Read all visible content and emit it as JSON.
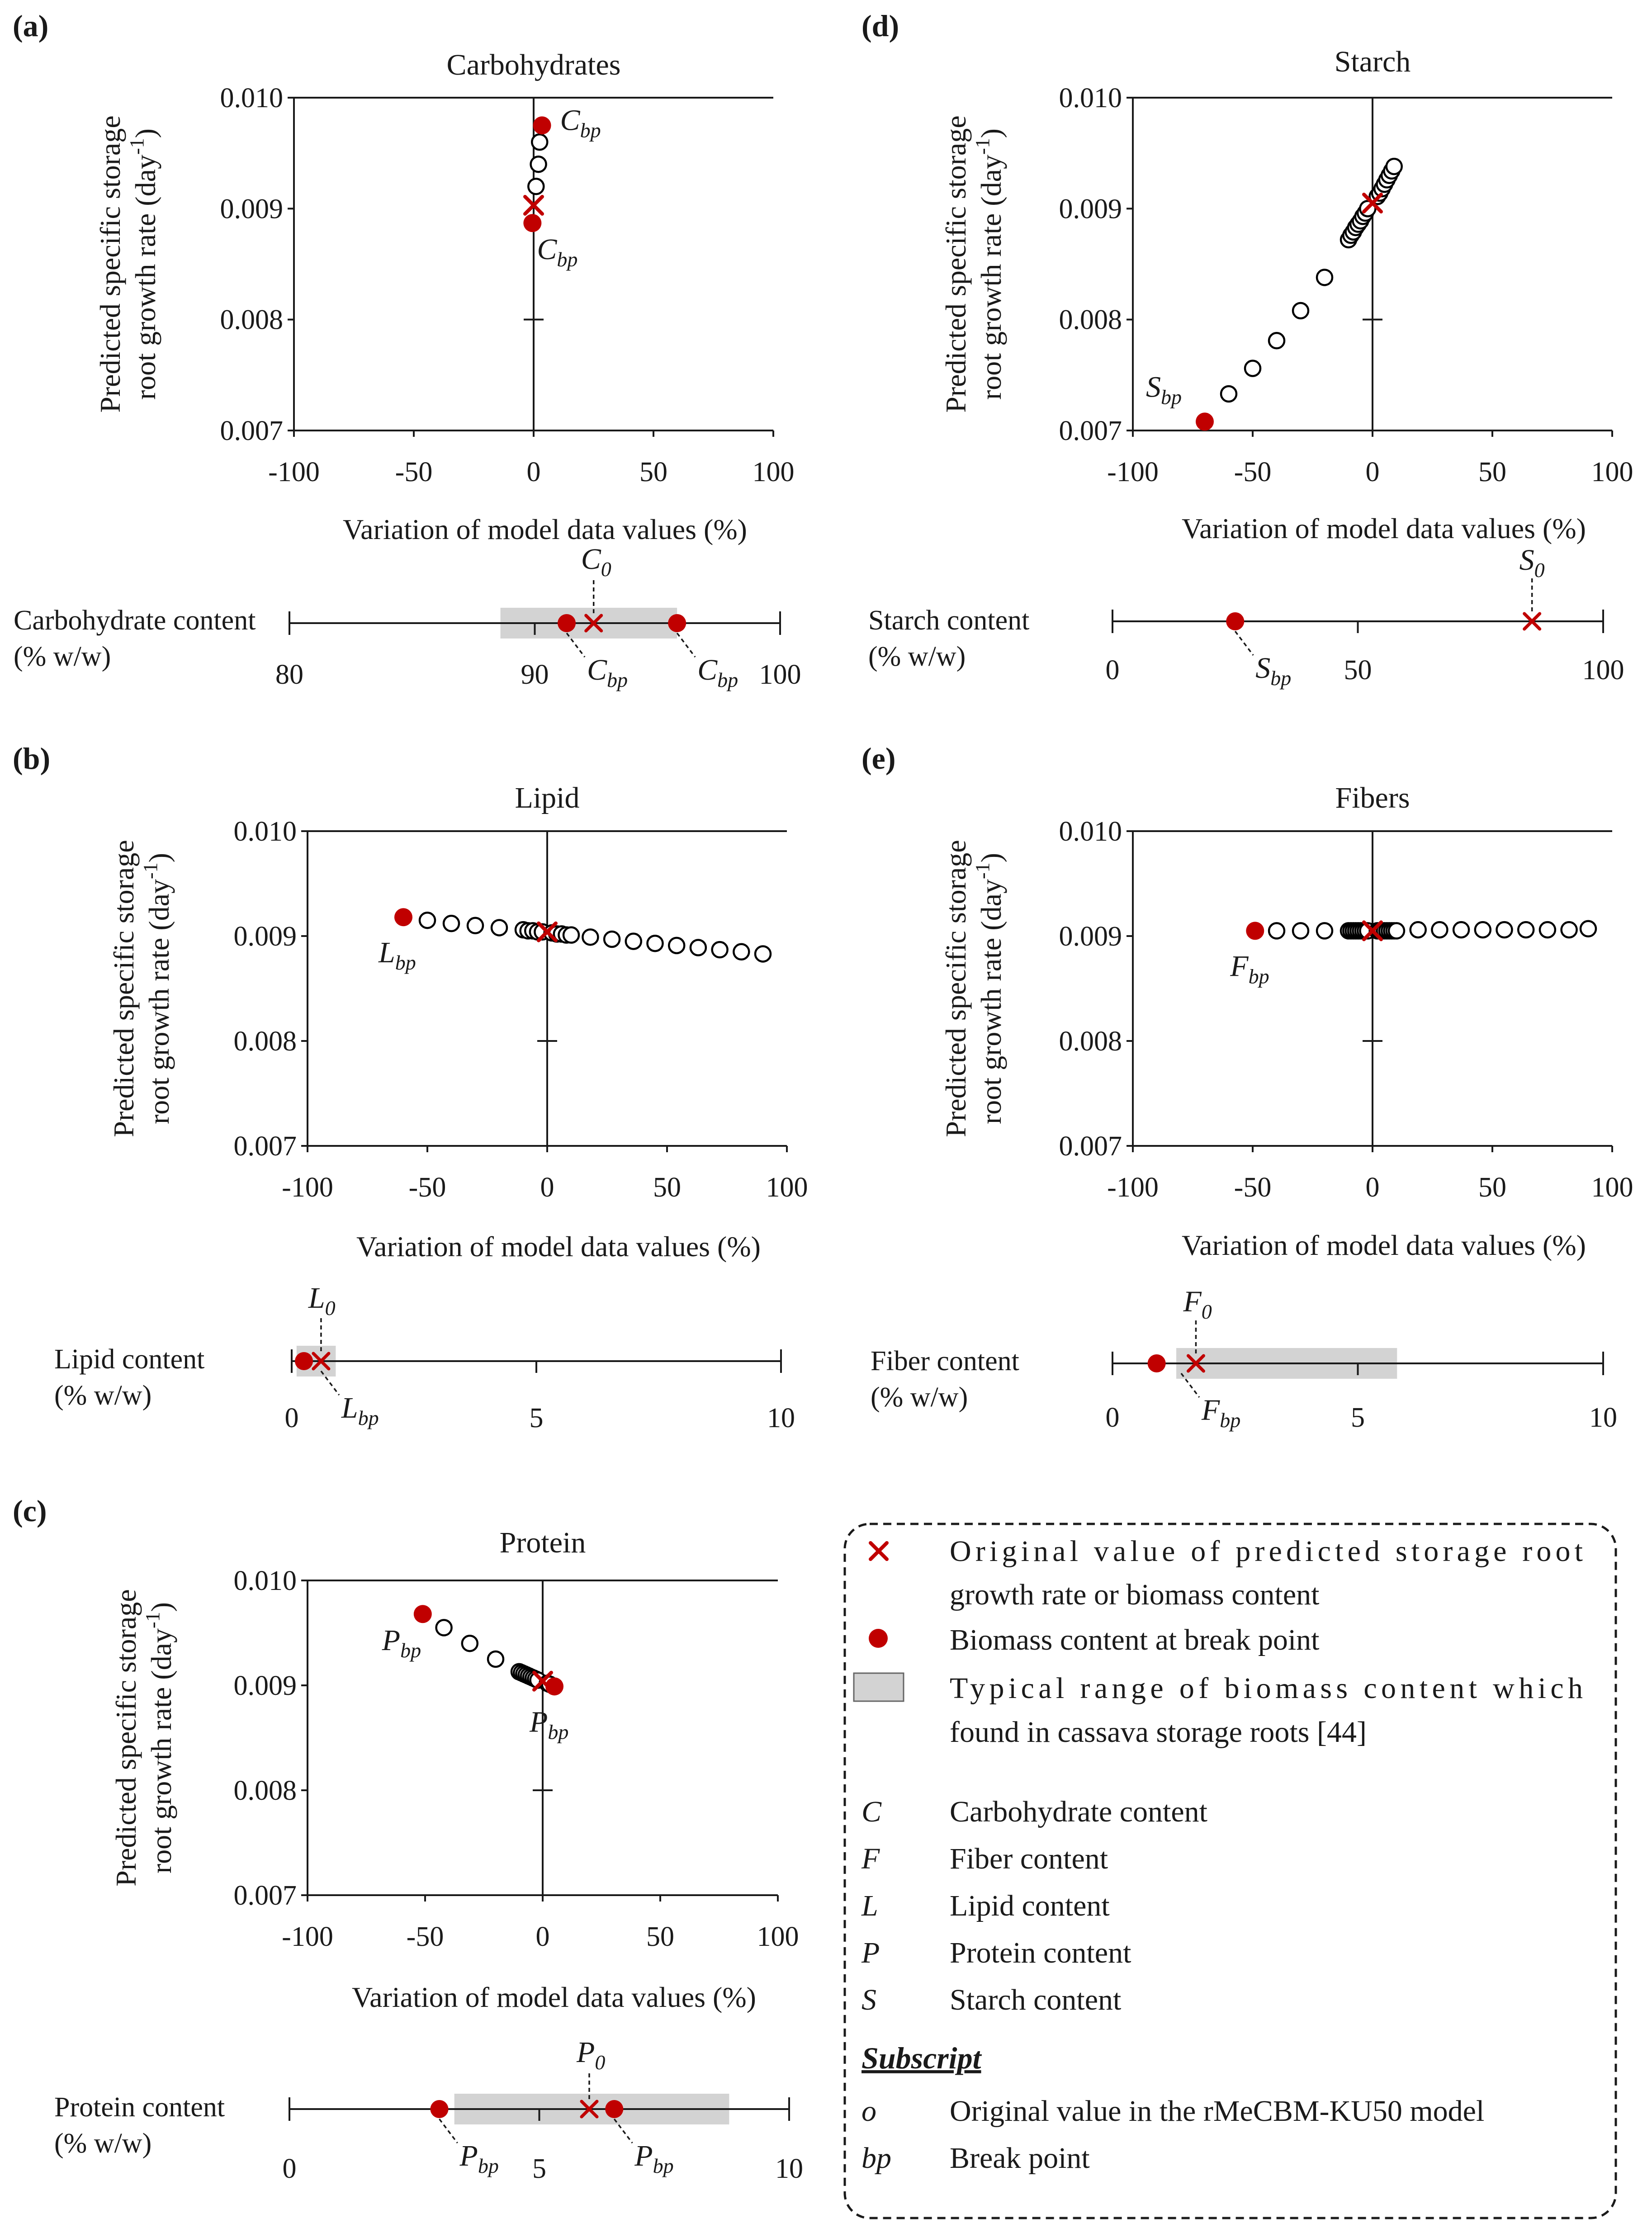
{
  "figure": {
    "shared_ylabel_line1": "Predicted specific storage",
    "shared_ylabel_line2": "root growth rate (day",
    "shared_ylabel_sup": "-1",
    "shared_ylabel_end": ")",
    "shared_xlabel": "Variation of model data values (%)"
  },
  "colors": {
    "red": "#c00000",
    "grey": "#d3d3d3",
    "black": "#000000"
  },
  "chart_data": [
    {
      "id": "a",
      "letter": "(a)",
      "type": "scatter",
      "title": "Carbohydrates",
      "xlabel": "Variation of model data values (%)",
      "ylabel": "Predicted specific storage root growth rate (day-1)",
      "xlim": [
        -100,
        100
      ],
      "ylim": [
        0.007,
        0.01
      ],
      "xticks": [
        "-100",
        "-50",
        "0",
        "50",
        "100"
      ],
      "yticks": [
        "0.010",
        "0.009",
        "0.008",
        "0.007"
      ],
      "open_points": [
        [
          2.5,
          0.0096
        ],
        [
          2.0,
          0.0094
        ],
        [
          1.0,
          0.0092
        ]
      ],
      "red_dots": [
        [
          3.5,
          0.00975
        ],
        [
          -0.5,
          0.00887
        ]
      ],
      "original_x": [
        0,
        0.00903
      ],
      "annotations": [
        {
          "sym": "C",
          "sub": "bp",
          "at": [
            3.5,
            0.00975
          ],
          "side": "right-up"
        },
        {
          "sym": "C",
          "sub": "bp",
          "at": [
            -0.5,
            0.00887
          ],
          "side": "right-down"
        }
      ],
      "content": {
        "label1": "Carbohydrate content",
        "label2": "(% w/w)",
        "xlim": [
          80,
          100
        ],
        "ticks": [
          "80",
          "90",
          "100"
        ],
        "tick_values": [
          80,
          90,
          100
        ],
        "range": [
          88.6,
          95.8
        ],
        "original": 92.4,
        "breakpoints": [
          91.3,
          95.8
        ],
        "orig_label": {
          "sym": "C",
          "sub": "0"
        },
        "bp_labels": [
          {
            "sym": "C",
            "sub": "bp",
            "at": 91.3
          },
          {
            "sym": "C",
            "sub": "bp",
            "at": 95.8
          }
        ]
      }
    },
    {
      "id": "b",
      "letter": "(b)",
      "type": "scatter",
      "title": "Lipid",
      "xlabel": "Variation of model data values (%)",
      "ylabel": "Predicted specific storage root growth rate (day-1)",
      "xlim": [
        -100,
        100
      ],
      "ylim": [
        0.007,
        0.01
      ],
      "xticks": [
        "-100",
        "-50",
        "0",
        "50",
        "100"
      ],
      "yticks": [
        "0.010",
        "0.009",
        "0.008",
        "0.007"
      ],
      "open_points": [
        [
          -50,
          0.00915
        ],
        [
          -40,
          0.00912
        ],
        [
          -30,
          0.0091
        ],
        [
          -20,
          0.00908
        ],
        [
          -10,
          0.00906
        ],
        [
          -8,
          0.00905
        ],
        [
          -6,
          0.00905
        ],
        [
          -4,
          0.00904
        ],
        [
          -2,
          0.00904
        ],
        [
          2,
          0.00903
        ],
        [
          4,
          0.00902
        ],
        [
          6,
          0.00902
        ],
        [
          8,
          0.00901
        ],
        [
          10,
          0.00901
        ],
        [
          18,
          0.00899
        ],
        [
          27,
          0.00897
        ],
        [
          36,
          0.00895
        ],
        [
          45,
          0.00893
        ],
        [
          54,
          0.00891
        ],
        [
          63,
          0.00889
        ],
        [
          72,
          0.00887
        ],
        [
          81,
          0.00885
        ],
        [
          90,
          0.00883
        ]
      ],
      "red_dots": [
        [
          -60,
          0.00918
        ]
      ],
      "original_x": [
        0,
        0.00904
      ],
      "annotations": [
        {
          "sym": "L",
          "sub": "bp",
          "at": [
            -60,
            0.00918
          ],
          "side": "below"
        }
      ],
      "content": {
        "label1": "Lipid content",
        "label2": "(% w/w)",
        "xlim": [
          0,
          10
        ],
        "ticks": [
          "0",
          "5",
          "10"
        ],
        "tick_values": [
          0,
          5,
          10
        ],
        "range": [
          0.1,
          0.9
        ],
        "original": 0.6,
        "breakpoints": [
          0.25
        ],
        "orig_label": {
          "sym": "L",
          "sub": "0"
        },
        "bp_labels": [
          {
            "sym": "L",
            "sub": "bp",
            "at": 0.6
          }
        ]
      }
    },
    {
      "id": "c",
      "letter": "(c)",
      "type": "scatter",
      "title": "Protein",
      "xlabel": "Variation of model data values (%)",
      "ylabel": "Predicted specific storage root growth rate (day-1)",
      "xlim": [
        -100,
        100
      ],
      "ylim": [
        0.007,
        0.01
      ],
      "xticks": [
        "-100",
        "-50",
        "0",
        "50",
        "100"
      ],
      "yticks": [
        "0.010",
        "0.009",
        "0.008",
        "0.007"
      ],
      "open_points": [
        [
          -42,
          0.00955
        ],
        [
          -31,
          0.0094
        ],
        [
          -20,
          0.00925
        ],
        [
          -10,
          0.00913
        ],
        [
          -9,
          0.00912
        ],
        [
          -8,
          0.00911
        ],
        [
          -7,
          0.0091
        ],
        [
          -6,
          0.00909
        ],
        [
          -5,
          0.00908
        ],
        [
          -4,
          0.00907
        ],
        [
          -3,
          0.00906
        ],
        [
          -2,
          0.00905
        ],
        [
          2,
          0.00902
        ],
        [
          3,
          0.00901
        ]
      ],
      "red_dots": [
        [
          -51,
          0.00968
        ],
        [
          5,
          0.00899
        ]
      ],
      "original_x": [
        0,
        0.00904
      ],
      "annotations": [
        {
          "sym": "P",
          "sub": "bp",
          "at": [
            -51,
            0.00968
          ],
          "side": "below-left"
        },
        {
          "sym": "P",
          "sub": "bp",
          "at": [
            5,
            0.00899
          ],
          "side": "below"
        }
      ],
      "content": {
        "label1": "Protein content",
        "label2": "(% w/w)",
        "xlim": [
          0,
          10
        ],
        "ticks": [
          "0",
          "5",
          "10"
        ],
        "tick_values": [
          0,
          5,
          10
        ],
        "range": [
          3.3,
          8.8
        ],
        "original": 6.0,
        "breakpoints": [
          3.0,
          6.5
        ],
        "orig_label": {
          "sym": "P",
          "sub": "0"
        },
        "bp_labels": [
          {
            "sym": "P",
            "sub": "bp",
            "at": 3.0
          },
          {
            "sym": "P",
            "sub": "bp",
            "at": 6.5
          }
        ]
      }
    },
    {
      "id": "d",
      "letter": "(d)",
      "type": "scatter",
      "title": "Starch",
      "xlabel": "Variation of model data values (%)",
      "ylabel": "Predicted specific storage root growth rate (day-1)",
      "xlim": [
        -100,
        100
      ],
      "ylim": [
        0.007,
        0.01
      ],
      "xticks": [
        "-100",
        "-50",
        "0",
        "50",
        "100"
      ],
      "yticks": [
        "0.010",
        "0.009",
        "0.008",
        "0.007"
      ],
      "open_points": [
        [
          -60,
          0.00733
        ],
        [
          -50,
          0.00756
        ],
        [
          -40,
          0.00781
        ],
        [
          -30,
          0.00808
        ],
        [
          -20,
          0.00838
        ],
        [
          -10,
          0.00872
        ],
        [
          -9,
          0.00876
        ],
        [
          -8,
          0.00879
        ],
        [
          -7,
          0.00883
        ],
        [
          -6,
          0.00886
        ],
        [
          -5,
          0.00889
        ],
        [
          -4,
          0.00893
        ],
        [
          -3,
          0.00896
        ],
        [
          -2,
          0.009
        ],
        [
          2,
          0.00911
        ],
        [
          3,
          0.00914
        ],
        [
          4,
          0.00918
        ],
        [
          5,
          0.00922
        ],
        [
          6,
          0.00926
        ],
        [
          7,
          0.0093
        ],
        [
          8,
          0.00934
        ],
        [
          9,
          0.00938
        ]
      ],
      "red_dots": [
        [
          -70,
          0.00708
        ]
      ],
      "original_x": [
        0,
        0.00905
      ],
      "annotations": [
        {
          "sym": "S",
          "sub": "bp",
          "at": [
            -70,
            0.00708
          ],
          "side": "left-up"
        }
      ],
      "content": {
        "label1": "Starch content",
        "label2": "(% w/w)",
        "xlim": [
          0,
          100
        ],
        "ticks": [
          "0",
          "50",
          "100"
        ],
        "tick_values": [
          0,
          50,
          100
        ],
        "range": null,
        "original": 85.5,
        "breakpoints": [
          25
        ],
        "orig_label": {
          "sym": "S",
          "sub": "0"
        },
        "bp_labels": [
          {
            "sym": "S",
            "sub": "bp",
            "at": 25
          }
        ]
      }
    },
    {
      "id": "e",
      "letter": "(e)",
      "type": "scatter",
      "title": "Fibers",
      "xlabel": "Variation of model data values (%)",
      "ylabel": "Predicted specific storage root growth rate (day-1)",
      "xlim": [
        -100,
        100
      ],
      "ylim": [
        0.007,
        0.01
      ],
      "xticks": [
        "-100",
        "-50",
        "0",
        "50",
        "100"
      ],
      "yticks": [
        "0.010",
        "0.009",
        "0.008",
        "0.007"
      ],
      "open_points": [
        [
          -40,
          0.00905
        ],
        [
          -30,
          0.00905
        ],
        [
          -20,
          0.00905
        ],
        [
          -10,
          0.00905
        ],
        [
          -9,
          0.00905
        ],
        [
          -8,
          0.00905
        ],
        [
          -7,
          0.00905
        ],
        [
          -6,
          0.00905
        ],
        [
          -5,
          0.00905
        ],
        [
          -4,
          0.00905
        ],
        [
          -3,
          0.00905
        ],
        [
          -2,
          0.00905
        ],
        [
          2,
          0.00905
        ],
        [
          3,
          0.00905
        ],
        [
          4,
          0.00905
        ],
        [
          5,
          0.00905
        ],
        [
          6,
          0.00905
        ],
        [
          7,
          0.00905
        ],
        [
          8,
          0.00905
        ],
        [
          9,
          0.00905
        ],
        [
          10,
          0.00905
        ],
        [
          19,
          0.00906
        ],
        [
          28,
          0.00906
        ],
        [
          37,
          0.00906
        ],
        [
          46,
          0.00906
        ],
        [
          55,
          0.00906
        ],
        [
          64,
          0.00906
        ],
        [
          73,
          0.00906
        ],
        [
          82,
          0.00906
        ],
        [
          90,
          0.00907
        ]
      ],
      "red_dots": [
        [
          -49,
          0.00905
        ]
      ],
      "original_x": [
        0,
        0.00905
      ],
      "annotations": [
        {
          "sym": "F",
          "sub": "bp",
          "at": [
            -49,
            0.00905
          ],
          "side": "below"
        }
      ],
      "content": {
        "label1": "Fiber content",
        "label2": "(% w/w)",
        "xlim": [
          0,
          10
        ],
        "ticks": [
          "0",
          "5",
          "10"
        ],
        "tick_values": [
          0,
          5,
          10
        ],
        "range": [
          1.3,
          5.8
        ],
        "original": 1.7,
        "breakpoints": [
          0.9
        ],
        "orig_label": {
          "sym": "F",
          "sub": "0"
        },
        "bp_labels": [
          {
            "sym": "F",
            "sub": "bp",
            "at": 1.4
          }
        ]
      }
    }
  ],
  "legend": {
    "entries": [
      {
        "marker": "x",
        "text1": "Original value of predicted storage root",
        "text2": "growth rate or biomass content"
      },
      {
        "marker": "dot",
        "text1": "Biomass content at break point",
        "text2": ""
      },
      {
        "marker": "grey",
        "text1": "Typical range of biomass content which",
        "text2": "found in cassava storage roots [44]"
      }
    ],
    "symbols": [
      {
        "sym": "C",
        "text": "Carbohydrate content"
      },
      {
        "sym": "F",
        "text": "Fiber content"
      },
      {
        "sym": "L",
        "text": "Lipid content"
      },
      {
        "sym": "P",
        "text": "Protein content"
      },
      {
        "sym": "S",
        "text": "Starch content"
      }
    ],
    "subscript_heading": "Subscript",
    "subscripts": [
      {
        "sym": "o",
        "text": "Original value in the rMeCBM-KU50 model"
      },
      {
        "sym": "bp",
        "text": "Break point"
      }
    ]
  }
}
